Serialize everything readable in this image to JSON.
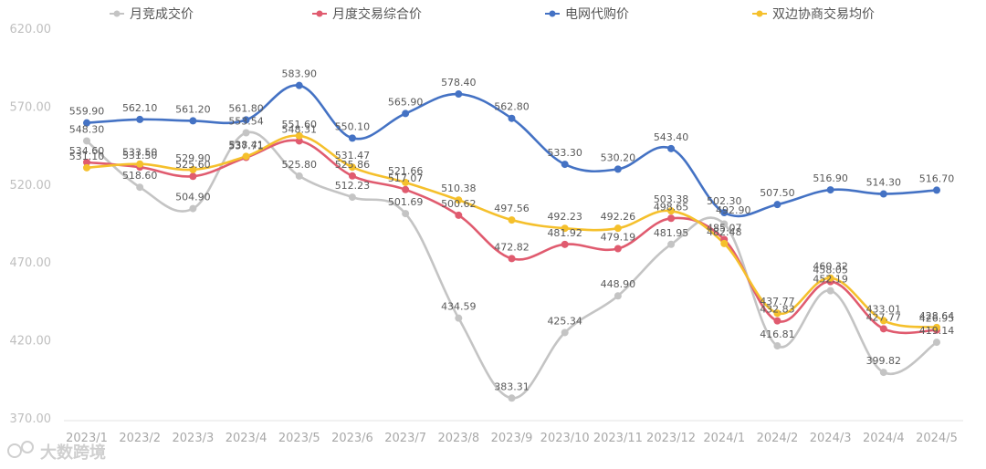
{
  "chart_data": {
    "type": "line",
    "categories": [
      "2023/1",
      "2023/2",
      "2023/3",
      "2023/4",
      "2023/5",
      "2023/6",
      "2023/7",
      "2023/8",
      "2023/9",
      "2023/10",
      "2023/11",
      "2023/12",
      "2024/1",
      "2024/2",
      "2024/3",
      "2024/4",
      "2024/5"
    ],
    "ylim": [
      370,
      620
    ],
    "yticks": [
      "370.00",
      "420.00",
      "470.00",
      "520.00",
      "570.00",
      "620.00"
    ],
    "series": [
      {
        "name": "月竞成交价",
        "color": "#c4c4c4",
        "values": [
          548.3,
          518.6,
          504.9,
          553.54,
          525.8,
          512.23,
          501.69,
          434.59,
          383.31,
          425.34,
          448.9,
          481.95,
          495.0,
          416.81,
          452.19,
          399.82,
          419.14
        ],
        "labels": [
          "548.30",
          "518.60",
          "504.90",
          "553.54",
          "525.80",
          "512.23",
          "501.69",
          "434.59",
          "383.31",
          "425.34",
          "448.90",
          "481.95",
          "",
          "416.81",
          "452.19",
          "399.82",
          "419.14"
        ]
      },
      {
        "name": "月度交易综合价",
        "color": "#e05b6f",
        "values": [
          534.6,
          531.5,
          525.6,
          537.71,
          548.31,
          525.86,
          517.07,
          500.62,
          472.82,
          481.92,
          479.19,
          498.65,
          485.07,
          432.83,
          458.05,
          427.77,
          426.95
        ],
        "labels": [
          "534.60",
          "531.50",
          "525.60",
          "537.71",
          "548.31",
          "525.86",
          "517.07",
          "500.62",
          "472.82",
          "481.92",
          "479.19",
          "498.65",
          "485.07",
          "432.83",
          "458.05",
          "427.77",
          "426.95"
        ]
      },
      {
        "name": "电网代购价",
        "color": "#4472c4",
        "values": [
          559.9,
          562.1,
          561.2,
          561.8,
          583.9,
          550.1,
          565.9,
          578.4,
          562.8,
          533.3,
          530.2,
          543.4,
          502.3,
          507.5,
          516.9,
          514.3,
          516.7
        ],
        "labels": [
          "559.90",
          "562.10",
          "561.20",
          "561.80",
          "583.90",
          "550.10",
          "565.90",
          "578.40",
          "562.80",
          "533.30",
          "530.20",
          "543.40",
          "502.30",
          "507.50",
          "516.90",
          "514.30",
          "516.70"
        ]
      },
      {
        "name": "双边协商交易均价",
        "color": "#f5c02c",
        "values": [
          531.1,
          533.5,
          529.9,
          538.41,
          551.6,
          531.47,
          521.66,
          510.38,
          497.56,
          492.23,
          492.26,
          503.38,
          482.48,
          437.77,
          460.32,
          433.01,
          428.64
        ],
        "labels": [
          "531.10",
          "533.50",
          "529.90",
          "538.41",
          "551.60",
          "531.47",
          "521.66",
          "510.38",
          "497.56",
          "492.23",
          "492.26",
          "503.38",
          "482.48",
          "437.77",
          "460.32",
          "433.01",
          "428.64"
        ]
      }
    ],
    "extra_labels": [
      "492.90"
    ],
    "legend_position": "top",
    "grid": false
  },
  "watermark": "大数跨境"
}
